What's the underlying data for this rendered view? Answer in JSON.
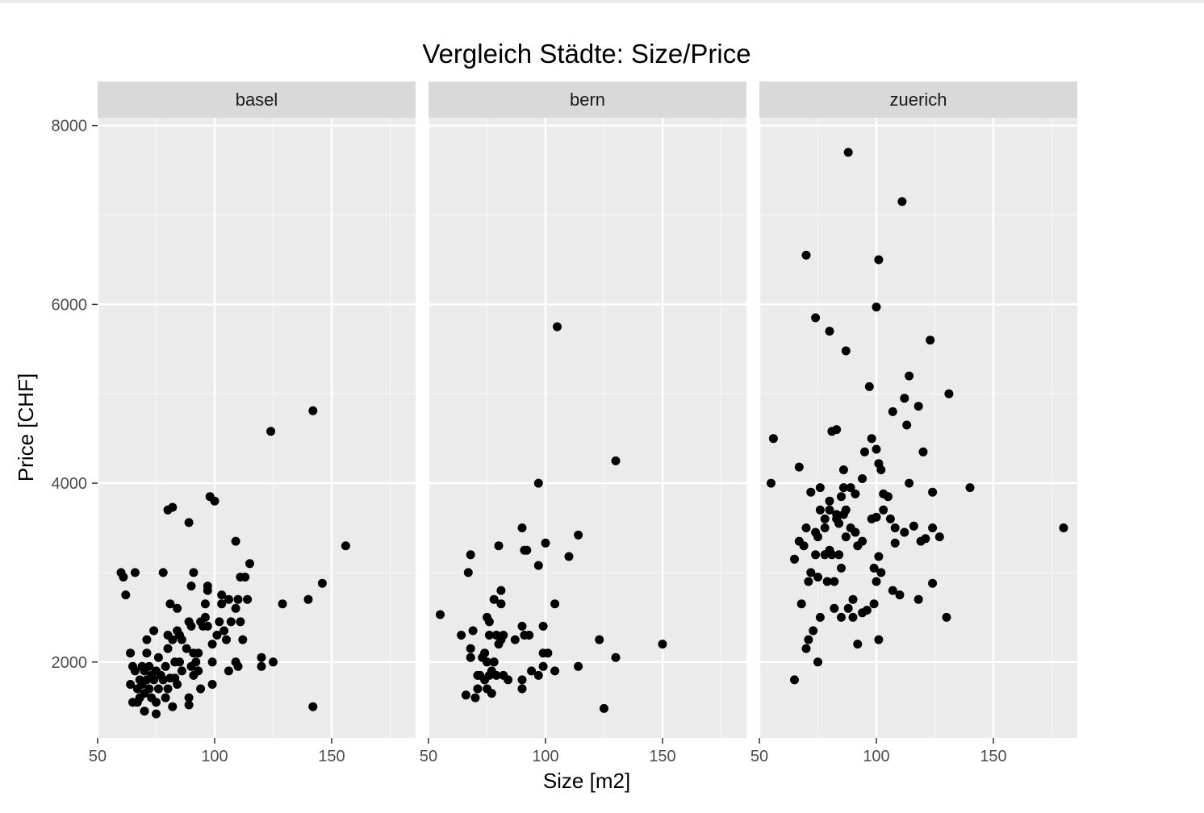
{
  "chart_data": {
    "type": "scatter",
    "title": "Vergleich Städte: Size/Price",
    "xlabel": "Size [m2]",
    "ylabel": "Price [CHF]",
    "xlim": [
      50,
      185
    ],
    "ylim": [
      1150,
      8400
    ],
    "x_ticks": [
      50,
      100,
      150
    ],
    "y_ticks": [
      2000,
      4000,
      6000,
      8000
    ],
    "grid": true,
    "facets": [
      {
        "name": "basel",
        "points": [
          [
            60,
            3000
          ],
          [
            61,
            2950
          ],
          [
            62,
            2750
          ],
          [
            64,
            2100
          ],
          [
            64,
            1750
          ],
          [
            65,
            1550
          ],
          [
            65,
            1950
          ],
          [
            66,
            3000
          ],
          [
            66,
            1900
          ],
          [
            67,
            1550
          ],
          [
            67,
            1700
          ],
          [
            68,
            1800
          ],
          [
            68,
            1600
          ],
          [
            69,
            1950
          ],
          [
            69,
            1750
          ],
          [
            70,
            1900
          ],
          [
            70,
            1650
          ],
          [
            70,
            1450
          ],
          [
            71,
            2250
          ],
          [
            71,
            2100
          ],
          [
            71,
            1800
          ],
          [
            72,
            1950
          ],
          [
            72,
            1700
          ],
          [
            73,
            1850
          ],
          [
            73,
            1600
          ],
          [
            74,
            1800
          ],
          [
            74,
            2350
          ],
          [
            75,
            1550
          ],
          [
            75,
            1900
          ],
          [
            75,
            1420
          ],
          [
            76,
            1700
          ],
          [
            76,
            2050
          ],
          [
            77,
            1850
          ],
          [
            78,
            3000
          ],
          [
            78,
            1800
          ],
          [
            79,
            1600
          ],
          [
            79,
            1950
          ],
          [
            80,
            3700
          ],
          [
            80,
            2300
          ],
          [
            80,
            2150
          ],
          [
            80,
            1700
          ],
          [
            81,
            2650
          ],
          [
            81,
            1820
          ],
          [
            82,
            3730
          ],
          [
            82,
            2250
          ],
          [
            82,
            1500
          ],
          [
            83,
            2000
          ],
          [
            83,
            1820
          ],
          [
            84,
            2600
          ],
          [
            84,
            2350
          ],
          [
            84,
            1750
          ],
          [
            85,
            2300
          ],
          [
            85,
            2000
          ],
          [
            86,
            1900
          ],
          [
            86,
            2250
          ],
          [
            88,
            2150
          ],
          [
            89,
            3560
          ],
          [
            89,
            2450
          ],
          [
            89,
            1600
          ],
          [
            89,
            1520
          ],
          [
            90,
            2850
          ],
          [
            90,
            2400
          ],
          [
            90,
            1950
          ],
          [
            91,
            3000
          ],
          [
            91,
            2100
          ],
          [
            91,
            1850
          ],
          [
            92,
            2000
          ],
          [
            93,
            2100
          ],
          [
            93,
            1900
          ],
          [
            94,
            2450
          ],
          [
            94,
            1700
          ],
          [
            95,
            2400
          ],
          [
            96,
            2500
          ],
          [
            96,
            2650
          ],
          [
            97,
            2800
          ],
          [
            97,
            2850
          ],
          [
            97,
            2400
          ],
          [
            98,
            3850
          ],
          [
            99,
            2000
          ],
          [
            99,
            1750
          ],
          [
            99,
            2200
          ],
          [
            100,
            3800
          ],
          [
            101,
            2300
          ],
          [
            102,
            2450
          ],
          [
            103,
            2650
          ],
          [
            103,
            2750
          ],
          [
            104,
            2350
          ],
          [
            105,
            2250
          ],
          [
            106,
            2700
          ],
          [
            106,
            1900
          ],
          [
            107,
            2450
          ],
          [
            109,
            2600
          ],
          [
            109,
            3350
          ],
          [
            109,
            2000
          ],
          [
            110,
            2700
          ],
          [
            110,
            1950
          ],
          [
            111,
            2950
          ],
          [
            111,
            2450
          ],
          [
            112,
            2250
          ],
          [
            113,
            2950
          ],
          [
            114,
            2700
          ],
          [
            115,
            3100
          ],
          [
            120,
            2050
          ],
          [
            120,
            1950
          ],
          [
            124,
            4580
          ],
          [
            125,
            2000
          ],
          [
            129,
            2650
          ],
          [
            140,
            2700
          ],
          [
            142,
            4810
          ],
          [
            142,
            1500
          ],
          [
            146,
            2880
          ],
          [
            156,
            3300
          ]
        ]
      },
      {
        "name": "bern",
        "points": [
          [
            55,
            2530
          ],
          [
            64,
            2300
          ],
          [
            66,
            1630
          ],
          [
            67,
            3000
          ],
          [
            68,
            3200
          ],
          [
            68,
            2150
          ],
          [
            68,
            2050
          ],
          [
            69,
            2350
          ],
          [
            70,
            1600
          ],
          [
            71,
            1700
          ],
          [
            71,
            1850
          ],
          [
            72,
            1850
          ],
          [
            73,
            2050
          ],
          [
            74,
            2100
          ],
          [
            74,
            1800
          ],
          [
            75,
            2500
          ],
          [
            75,
            2000
          ],
          [
            75,
            1700
          ],
          [
            76,
            2450
          ],
          [
            76,
            2300
          ],
          [
            76,
            1850
          ],
          [
            77,
            1650
          ],
          [
            77,
            1900
          ],
          [
            78,
            2700
          ],
          [
            78,
            2000
          ],
          [
            79,
            1850
          ],
          [
            79,
            2300
          ],
          [
            80,
            2200
          ],
          [
            80,
            3300
          ],
          [
            81,
            2800
          ],
          [
            81,
            2650
          ],
          [
            81,
            2250
          ],
          [
            82,
            1850
          ],
          [
            82,
            2300
          ],
          [
            84,
            1800
          ],
          [
            87,
            2250
          ],
          [
            90,
            3500
          ],
          [
            90,
            2400
          ],
          [
            90,
            1800
          ],
          [
            90,
            1700
          ],
          [
            91,
            3250
          ],
          [
            91,
            2300
          ],
          [
            92,
            3250
          ],
          [
            93,
            2300
          ],
          [
            94,
            1900
          ],
          [
            97,
            4000
          ],
          [
            97,
            3080
          ],
          [
            97,
            1850
          ],
          [
            99,
            2400
          ],
          [
            99,
            2100
          ],
          [
            99,
            1950
          ],
          [
            100,
            3330
          ],
          [
            101,
            2100
          ],
          [
            104,
            2650
          ],
          [
            104,
            1900
          ],
          [
            105,
            5750
          ],
          [
            110,
            3180
          ],
          [
            114,
            3420
          ],
          [
            114,
            1950
          ],
          [
            123,
            2250
          ],
          [
            125,
            1480
          ],
          [
            130,
            4250
          ],
          [
            130,
            2050
          ],
          [
            150,
            2200
          ]
        ]
      },
      {
        "name": "zuerich",
        "points": [
          [
            55,
            4000
          ],
          [
            56,
            4500
          ],
          [
            65,
            1800
          ],
          [
            65,
            3150
          ],
          [
            67,
            3350
          ],
          [
            67,
            4180
          ],
          [
            68,
            2650
          ],
          [
            69,
            3300
          ],
          [
            70,
            6550
          ],
          [
            70,
            3500
          ],
          [
            70,
            2150
          ],
          [
            71,
            2900
          ],
          [
            71,
            2250
          ],
          [
            72,
            3900
          ],
          [
            72,
            3000
          ],
          [
            73,
            2350
          ],
          [
            74,
            5850
          ],
          [
            74,
            3450
          ],
          [
            74,
            3200
          ],
          [
            75,
            3400
          ],
          [
            75,
            2950
          ],
          [
            75,
            2000
          ],
          [
            76,
            3950
          ],
          [
            76,
            3700
          ],
          [
            76,
            2500
          ],
          [
            78,
            3600
          ],
          [
            78,
            3500
          ],
          [
            78,
            3200
          ],
          [
            79,
            2900
          ],
          [
            80,
            5700
          ],
          [
            80,
            3800
          ],
          [
            80,
            3700
          ],
          [
            80,
            3250
          ],
          [
            81,
            4580
          ],
          [
            81,
            3200
          ],
          [
            82,
            2900
          ],
          [
            82,
            2600
          ],
          [
            83,
            4600
          ],
          [
            83,
            3650
          ],
          [
            83,
            3600
          ],
          [
            84,
            3550
          ],
          [
            84,
            3200
          ],
          [
            85,
            3850
          ],
          [
            85,
            3050
          ],
          [
            85,
            2500
          ],
          [
            86,
            4150
          ],
          [
            86,
            3950
          ],
          [
            86,
            3650
          ],
          [
            87,
            5480
          ],
          [
            87,
            3700
          ],
          [
            87,
            3400
          ],
          [
            88,
            7700
          ],
          [
            88,
            2600
          ],
          [
            89,
            3950
          ],
          [
            89,
            3500
          ],
          [
            90,
            2700
          ],
          [
            90,
            2500
          ],
          [
            91,
            3880
          ],
          [
            91,
            3450
          ],
          [
            92,
            3300
          ],
          [
            92,
            2200
          ],
          [
            94,
            4050
          ],
          [
            94,
            3350
          ],
          [
            94,
            2550
          ],
          [
            95,
            4350
          ],
          [
            96,
            2580
          ],
          [
            97,
            5080
          ],
          [
            98,
            4500
          ],
          [
            98,
            3600
          ],
          [
            99,
            3050
          ],
          [
            99,
            2650
          ],
          [
            100,
            5970
          ],
          [
            100,
            4380
          ],
          [
            100,
            3620
          ],
          [
            100,
            2900
          ],
          [
            101,
            6500
          ],
          [
            101,
            4220
          ],
          [
            101,
            3180
          ],
          [
            101,
            2250
          ],
          [
            102,
            4150
          ],
          [
            102,
            3000
          ],
          [
            103,
            3700
          ],
          [
            103,
            3880
          ],
          [
            105,
            3850
          ],
          [
            106,
            3600
          ],
          [
            107,
            2800
          ],
          [
            107,
            4800
          ],
          [
            108,
            3500
          ],
          [
            108,
            3330
          ],
          [
            110,
            2750
          ],
          [
            111,
            7150
          ],
          [
            112,
            4950
          ],
          [
            112,
            3450
          ],
          [
            113,
            4650
          ],
          [
            114,
            5200
          ],
          [
            114,
            4000
          ],
          [
            116,
            3520
          ],
          [
            118,
            4860
          ],
          [
            118,
            2700
          ],
          [
            119,
            3350
          ],
          [
            120,
            4350
          ],
          [
            121,
            3380
          ],
          [
            123,
            5600
          ],
          [
            124,
            3900
          ],
          [
            124,
            3500
          ],
          [
            124,
            2880
          ],
          [
            127,
            3400
          ],
          [
            130,
            2500
          ],
          [
            131,
            5000
          ],
          [
            140,
            3950
          ],
          [
            180,
            3500
          ]
        ]
      }
    ]
  }
}
